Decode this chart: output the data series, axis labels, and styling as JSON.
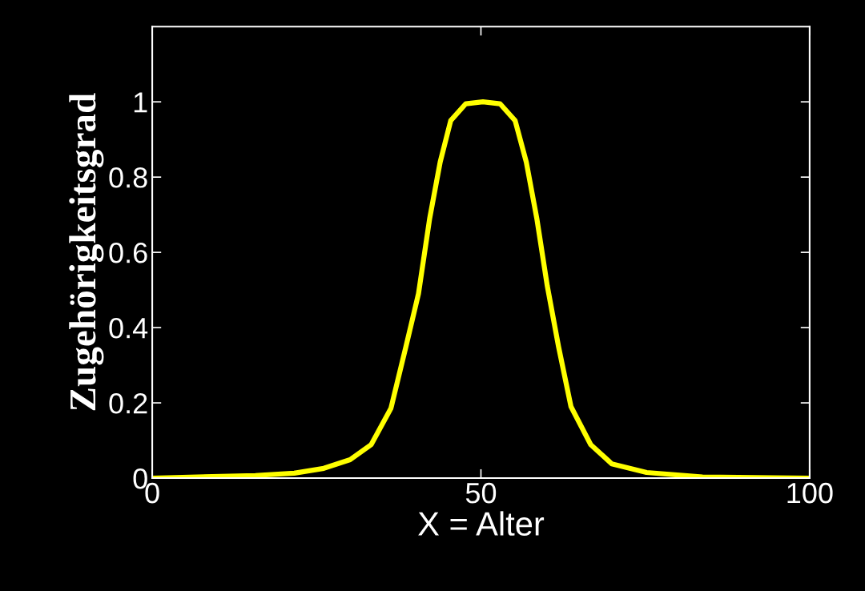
{
  "chart_data": {
    "type": "line",
    "xlabel": "X = Alter",
    "ylabel": "Zugehörigkeitsgrad",
    "x": [
      0,
      15.7,
      21.6,
      26.1,
      30.1,
      33.3,
      36.3,
      38.6,
      40.5,
      42.2,
      43.8,
      45.4,
      47.7,
      50.3,
      52.9,
      55.2,
      56.9,
      58.5,
      60.1,
      61.8,
      63.7,
      66.7,
      69.9,
      75.2,
      83.7,
      100
    ],
    "series": [
      {
        "color": "#ffff00",
        "values": [
          0,
          0.007,
          0.013,
          0.026,
          0.049,
          0.089,
          0.185,
          0.35,
          0.49,
          0.69,
          0.84,
          0.95,
          0.995,
          1,
          0.995,
          0.95,
          0.84,
          0.69,
          0.51,
          0.35,
          0.19,
          0.089,
          0.038,
          0.015,
          0.003,
          0
        ]
      }
    ],
    "xlim": [
      0,
      100
    ],
    "ylim": [
      0,
      1.2
    ],
    "xticks": [
      0,
      50,
      100
    ],
    "yticks": [
      0,
      0.2,
      0.4,
      0.6,
      0.8,
      1
    ],
    "grid": false,
    "line_style": "solid"
  }
}
